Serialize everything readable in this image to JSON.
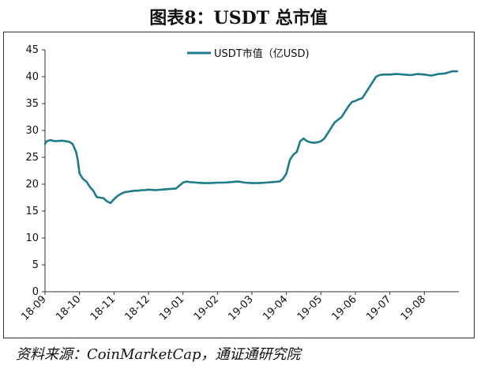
{
  "figure": {
    "title": "图表8：USDT 总市值",
    "source": "资料来源：CoinMarketCap，通证通研究院"
  },
  "colors": {
    "line": "#1f7a8c",
    "axis": "#333333"
  },
  "chart_data": {
    "type": "line",
    "title": "图表8：USDT 总市值",
    "xlabel": "",
    "ylabel": "",
    "ylim": [
      0,
      45
    ],
    "yticks": [
      0,
      5,
      10,
      15,
      20,
      25,
      30,
      35,
      40,
      45
    ],
    "xlim": [
      0,
      12
    ],
    "xticks": [
      "18-09",
      "18-10",
      "18-11",
      "18-12",
      "19-01",
      "19-02",
      "19-03",
      "19-04",
      "19-05",
      "19-06",
      "19-07",
      "19-08"
    ],
    "grid": false,
    "legend": "top-center",
    "series": [
      {
        "name": "USDT市值（亿USD)",
        "x": [
          0.0,
          0.05,
          0.15,
          0.3,
          0.5,
          0.7,
          0.8,
          0.9,
          0.95,
          1.0,
          1.1,
          1.2,
          1.3,
          1.4,
          1.5,
          1.6,
          1.7,
          1.8,
          1.9,
          2.0,
          2.1,
          2.2,
          2.3,
          2.4,
          2.5,
          2.6,
          2.7,
          2.8,
          2.9,
          3.0,
          3.2,
          3.4,
          3.6,
          3.8,
          4.0,
          4.1,
          4.2,
          4.4,
          4.6,
          4.8,
          5.0,
          5.2,
          5.4,
          5.6,
          5.8,
          6.0,
          6.2,
          6.4,
          6.6,
          6.8,
          6.9,
          7.0,
          7.1,
          7.2,
          7.3,
          7.4,
          7.5,
          7.6,
          7.7,
          7.8,
          7.9,
          8.0,
          8.1,
          8.2,
          8.3,
          8.4,
          8.5,
          8.6,
          8.7,
          8.8,
          8.9,
          9.0,
          9.1,
          9.2,
          9.3,
          9.4,
          9.5,
          9.6,
          9.7,
          9.8,
          9.9,
          10.0,
          10.2,
          10.4,
          10.6,
          10.8,
          11.0,
          11.2,
          11.4,
          11.6,
          11.8,
          11.95
        ],
        "values": [
          27.5,
          28.0,
          28.2,
          28.0,
          28.1,
          27.9,
          27.5,
          26.0,
          24.5,
          22.0,
          21.0,
          20.5,
          19.5,
          18.8,
          17.6,
          17.5,
          17.4,
          16.8,
          16.5,
          17.2,
          17.8,
          18.2,
          18.5,
          18.6,
          18.7,
          18.8,
          18.8,
          18.9,
          18.9,
          19.0,
          18.9,
          19.0,
          19.1,
          19.2,
          20.3,
          20.5,
          20.4,
          20.3,
          20.2,
          20.2,
          20.3,
          20.3,
          20.4,
          20.5,
          20.3,
          20.2,
          20.2,
          20.3,
          20.4,
          20.5,
          21.0,
          22.0,
          24.5,
          25.5,
          26.0,
          28.0,
          28.5,
          28.0,
          27.8,
          27.7,
          27.8,
          28.0,
          28.5,
          29.5,
          30.5,
          31.5,
          32.0,
          32.5,
          33.5,
          34.5,
          35.3,
          35.5,
          35.8,
          36.0,
          37.0,
          38.0,
          39.0,
          40.0,
          40.3,
          40.4,
          40.4,
          40.4,
          40.5,
          40.4,
          40.3,
          40.5,
          40.4,
          40.2,
          40.5,
          40.6,
          41.0,
          41.0
        ]
      }
    ]
  }
}
